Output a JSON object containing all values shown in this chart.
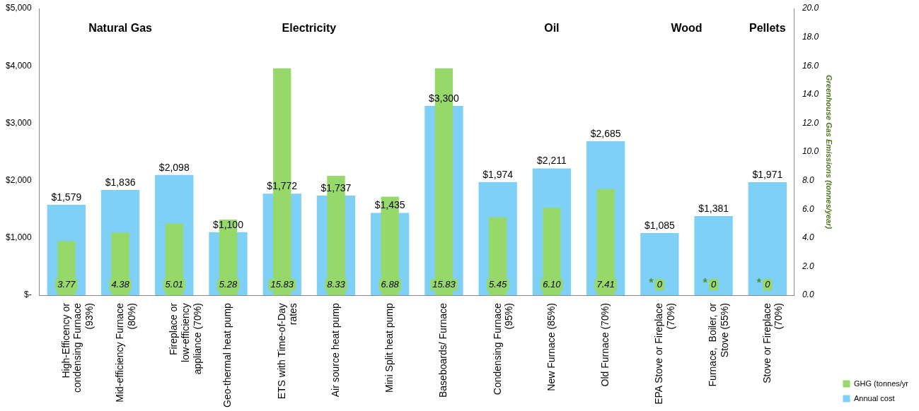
{
  "chart_data": {
    "type": "bar",
    "categories": [
      "High-Efficency or condensing Furnace (93%)",
      "Mid-efficiency Furnace (80%)",
      "Fireplace or low-efficiency appliance (70%)",
      "Geo-thermal heat pump",
      "ETS with Time-of-Day rates",
      "Air source heat pump",
      "Mini Split heat pump",
      "Baseboards/ Furnace",
      "Condensing Furnace (95%)",
      "New Furnace (85%)",
      "Old Furnace (70%)",
      "EPA Stove or Fireplace (70%)",
      "Furnace,  Boiler, or Stove (55%)",
      "Stove or Fireplace (70%)"
    ],
    "series": [
      {
        "name": "Annual cost",
        "color": "#7fd0f7",
        "values": [
          1579,
          1836,
          2098,
          1100,
          1772,
          1737,
          1435,
          3300,
          1974,
          2211,
          2685,
          1085,
          1381,
          1971
        ],
        "value_labels": [
          "$1,579",
          "$1,836",
          "$2,098",
          "$1,100",
          "$1,772",
          "$1,737",
          "$1,435",
          "$3,300",
          "$1,974",
          "$2,211",
          "$2,685",
          "$1,085",
          "$1,381",
          "$1,971"
        ]
      },
      {
        "name": "GHG (tonnes/yr",
        "color": "#96d96a",
        "axis": "y2",
        "values": [
          3.77,
          4.38,
          5.01,
          5.28,
          15.83,
          8.33,
          6.88,
          15.83,
          5.45,
          6.1,
          7.41,
          0,
          0,
          0
        ],
        "value_labels": [
          "3.77",
          "4.38",
          "5.01",
          "5.28",
          "15.83",
          "8.33",
          "6.88",
          "15.83",
          "5.45",
          "6.10",
          "7.41",
          "0",
          "0",
          "0"
        ]
      }
    ],
    "ylim": [
      0,
      5000
    ],
    "yticks": [
      {
        "value": 0,
        "label": "$-"
      },
      {
        "value": 1000,
        "label": "$1,000"
      },
      {
        "value": 2000,
        "label": "$2,000"
      },
      {
        "value": 3000,
        "label": "$3,000"
      },
      {
        "value": 4000,
        "label": "$4,000"
      },
      {
        "value": 5000,
        "label": "$5,000"
      }
    ],
    "y2lim": [
      0,
      20
    ],
    "y2ticks": [
      {
        "value": 0,
        "label": "0.0"
      },
      {
        "value": 2,
        "label": "2.0"
      },
      {
        "value": 4,
        "label": "4.0"
      },
      {
        "value": 6,
        "label": "6.0"
      },
      {
        "value": 8,
        "label": "8.0"
      },
      {
        "value": 10,
        "label": "10.0"
      },
      {
        "value": 12,
        "label": "12.0"
      },
      {
        "value": 14,
        "label": "14.0"
      },
      {
        "value": 16,
        "label": "16.0"
      },
      {
        "value": 18,
        "label": "18.0"
      },
      {
        "value": 20,
        "label": "20.0"
      }
    ],
    "y2label": "Greenhouse Gas Emissions (tonnes/year)",
    "annotations": [
      "Natural Gas",
      "Electricity",
      "Oil",
      "Wood",
      "Pellets",
      "*",
      "*",
      "*"
    ],
    "grid": false,
    "legend": "bottom right"
  }
}
